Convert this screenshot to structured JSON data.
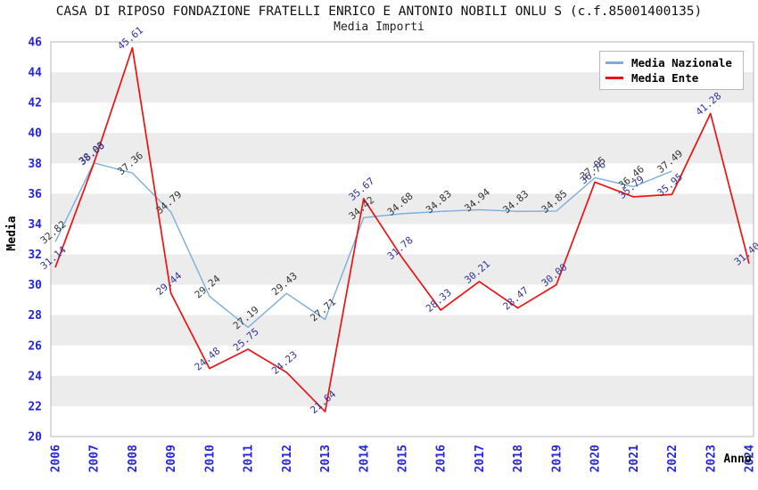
{
  "header": {
    "title": "CASA DI RIPOSO FONDAZIONE FRATELLI ENRICO E ANTONIO NOBILI ONLU S (c.f.85001400135)",
    "subtitle": "Media Importi"
  },
  "chart_data": {
    "type": "line",
    "title": "CASA DI RIPOSO FONDAZIONE FRATELLI ENRICO E ANTONIO NOBILI ONLU S (c.f.85001400135)",
    "subtitle": "Media Importi",
    "xlabel": "Anno",
    "ylabel": "Media",
    "x": [
      2006,
      2007,
      2008,
      2009,
      2010,
      2011,
      2012,
      2013,
      2014,
      2015,
      2016,
      2017,
      2018,
      2019,
      2020,
      2021,
      2022,
      2023,
      2024
    ],
    "series": [
      {
        "name": "Media Nazionale",
        "color": "#7aaede",
        "label_color": "#333333",
        "values": [
          32.82,
          38.03,
          37.36,
          34.79,
          29.24,
          27.19,
          29.43,
          27.71,
          34.42,
          34.68,
          34.83,
          34.94,
          34.83,
          34.85,
          37.05,
          36.46,
          37.49,
          null,
          null
        ]
      },
      {
        "name": "Media Ente",
        "color": "#ee1111",
        "label_color": "#333399",
        "values": [
          31.14,
          38.0,
          45.61,
          29.44,
          24.48,
          25.75,
          24.23,
          21.64,
          35.67,
          31.78,
          28.33,
          30.21,
          28.47,
          30.0,
          36.76,
          35.79,
          35.95,
          41.28,
          31.4
        ]
      }
    ],
    "ylim": [
      20,
      46
    ],
    "ytick_step": 2,
    "grid": "horizontal-bands-alternating",
    "legend_position": "top-right"
  },
  "colors": {
    "tick_text": "#2424d8",
    "axis_title_text": "#000000",
    "band_gray": "#ececec",
    "plot_border": "#b5b5b5",
    "background": "#ffffff"
  }
}
